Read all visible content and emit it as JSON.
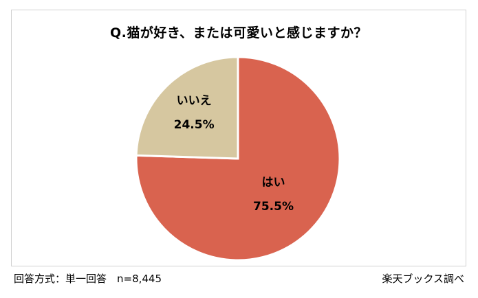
{
  "chart_data": {
    "type": "pie",
    "title": "Q.猫が好き、または可愛いと感じますか？",
    "slices": [
      {
        "label": "はい",
        "value": 75.5,
        "value_label": "75.5%",
        "color": "#d9634f"
      },
      {
        "label": "いいえ",
        "value": 24.5,
        "value_label": "24.5%",
        "color": "#d6c7a0"
      }
    ],
    "start": "12 o'clock",
    "direction": "clockwise"
  },
  "footer": {
    "method": "回答方式：単一回答　n=8,445",
    "source": "楽天ブックス調べ"
  }
}
